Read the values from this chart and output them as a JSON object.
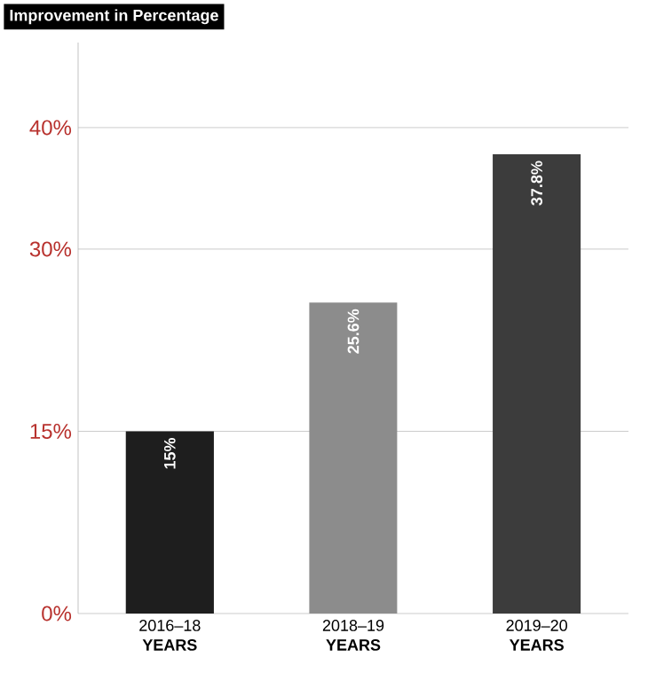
{
  "chart_data": {
    "type": "bar",
    "title": "Improvement in Percentage",
    "categories": [
      "2016–18 **YEARS**",
      "2018–19 **YEARS**",
      "2019–20 **YEARS**"
    ],
    "values": [
      15,
      25.6,
      37.8
    ],
    "colors": [
      "#1e1e1e",
      "#8c8c8c",
      "#3c3c3c"
    ],
    "value_labels": [
      "15%",
      "25.6%",
      "37.8%"
    ],
    "ylim": [
      0,
      47
    ],
    "yticks": [
      {
        "value": 0,
        "label": "0%"
      },
      {
        "value": 15,
        "label": "15%"
      },
      {
        "value": 30,
        "label": "30%"
      },
      {
        "value": 40,
        "label": "40%"
      }
    ],
    "grid": "y"
  }
}
